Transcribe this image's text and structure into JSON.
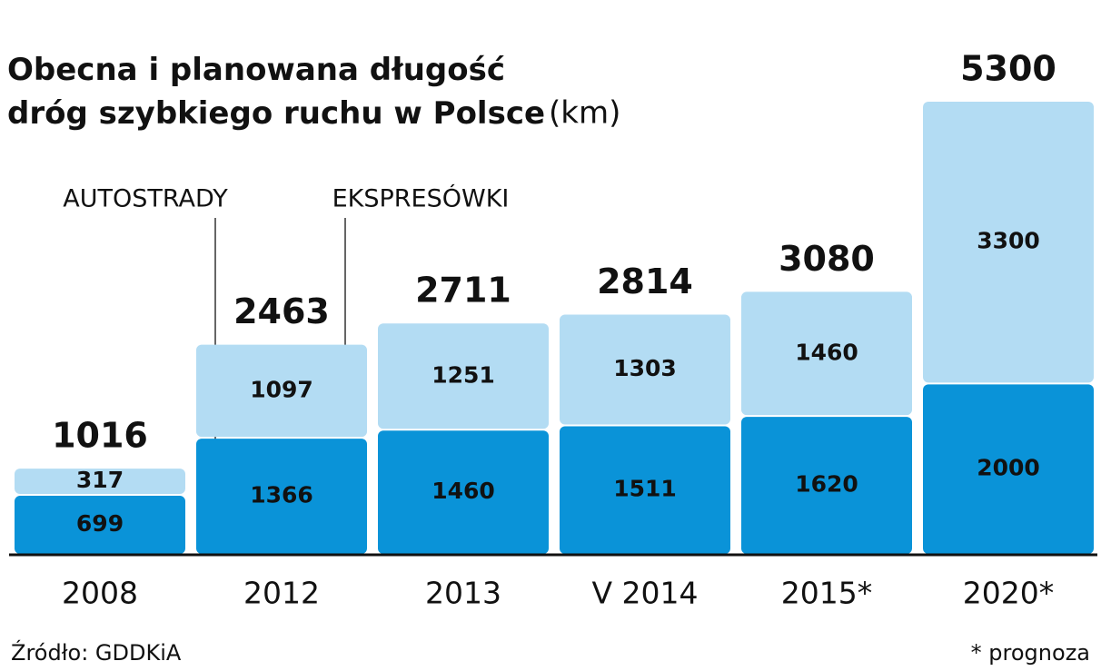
{
  "chart_data": {
    "type": "stacked-bar",
    "title": "Obecna i planowana długość dróg szybkiego ruchu w Polsce",
    "unit": "(km)",
    "categories": [
      "2008",
      "2012",
      "2013",
      "V 2014",
      "2015*",
      "2020*"
    ],
    "series": [
      {
        "name": "AUTOSTRADY",
        "color": "#0a93d8",
        "values": [
          699,
          1366,
          1460,
          1511,
          1620,
          2000
        ]
      },
      {
        "name": "EKSPRESÓWKI",
        "color": "#b3dcf3",
        "values": [
          317,
          1097,
          1251,
          1303,
          1460,
          3300
        ]
      }
    ],
    "totals": [
      1016,
      2463,
      2711,
      2814,
      3080,
      5300
    ],
    "ylim": [
      0,
      5300
    ],
    "source": "Źródło: GDDKiA",
    "note": "* prognoza"
  }
}
